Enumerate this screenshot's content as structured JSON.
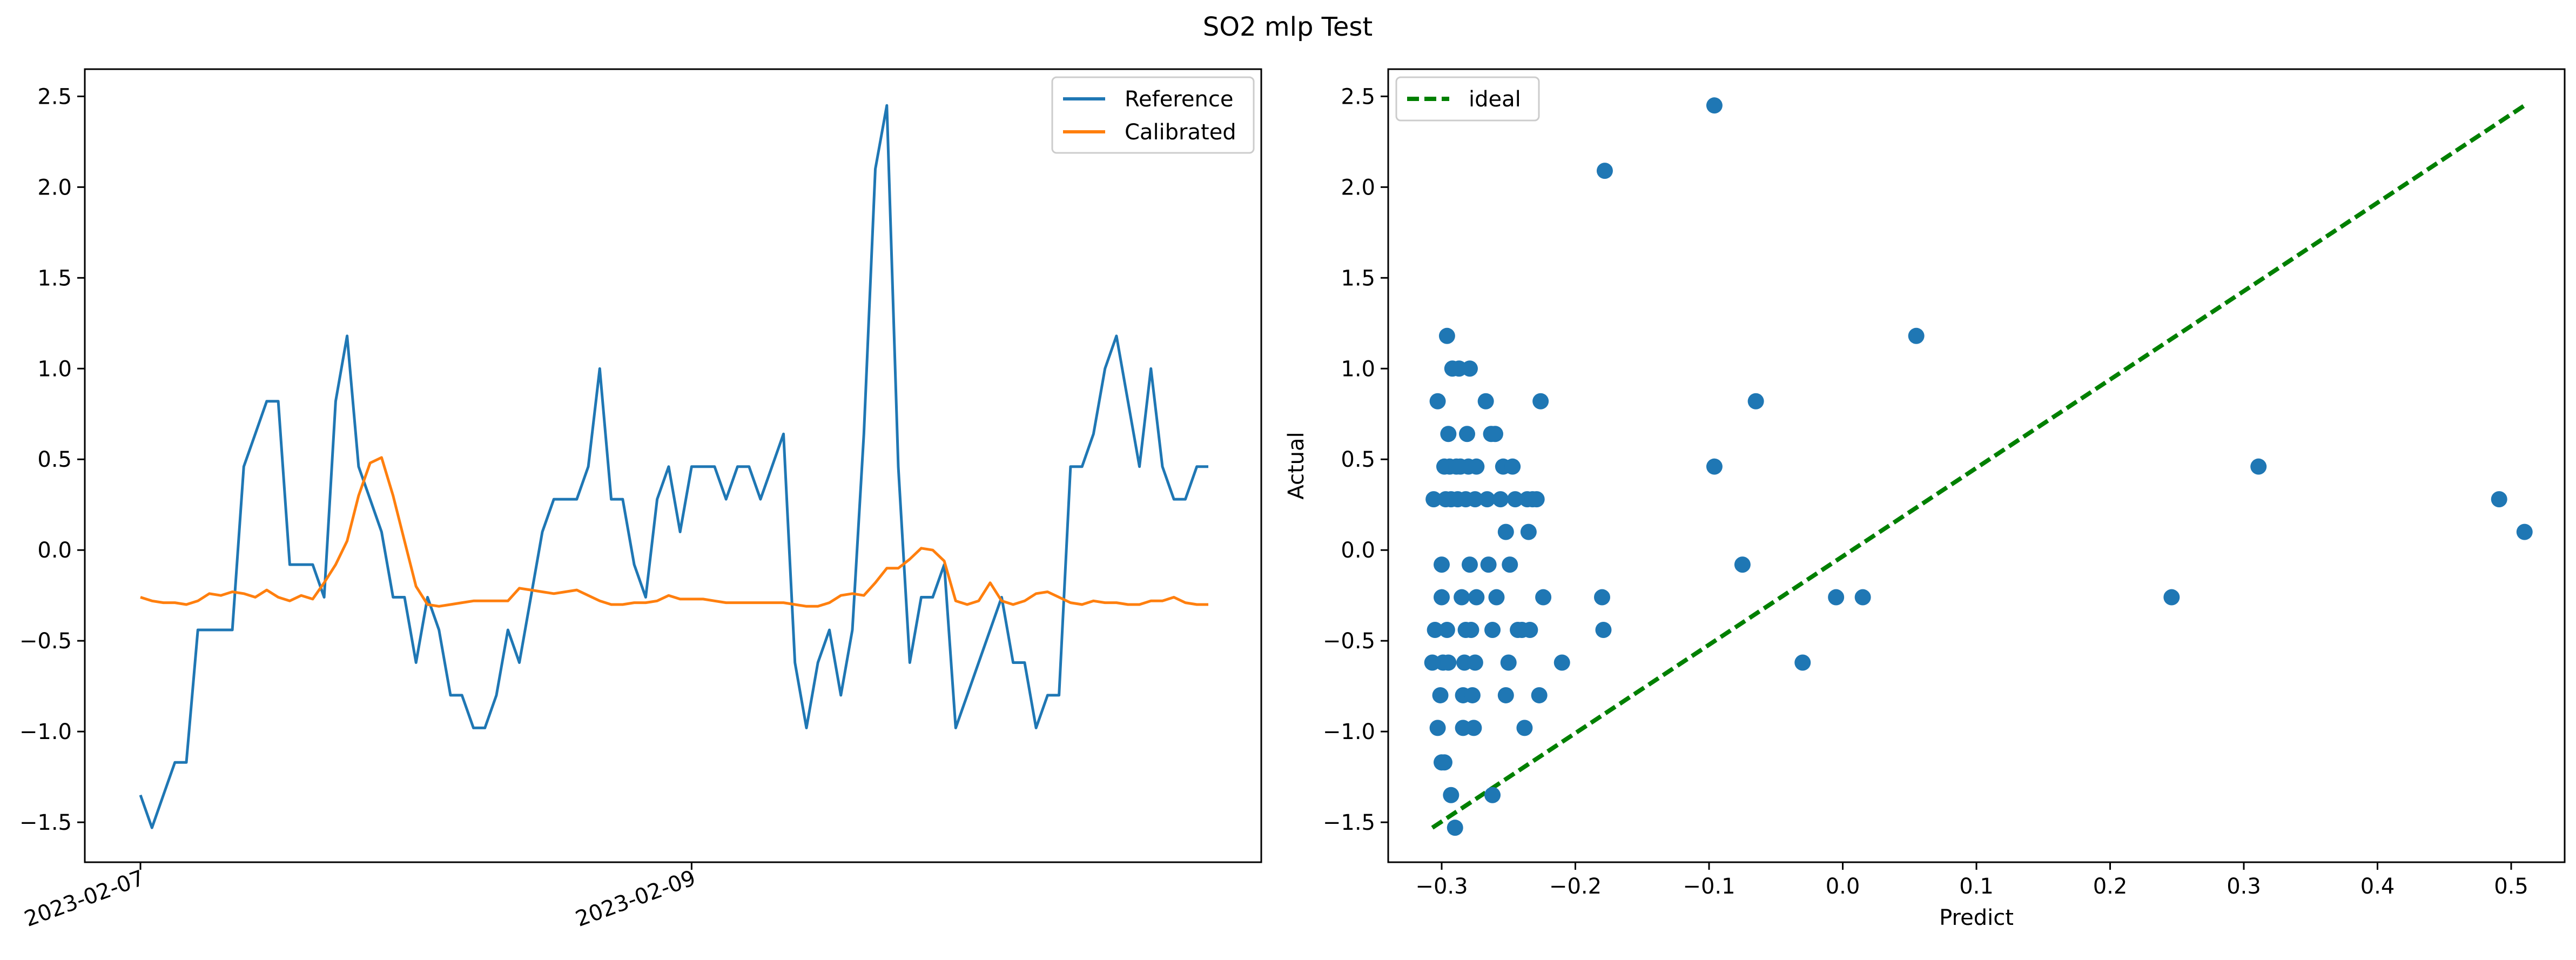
{
  "figure": {
    "suptitle": "SO2 mlp Test"
  },
  "chart_data": [
    {
      "type": "line",
      "title": "",
      "xlabel": "",
      "ylabel": "",
      "ylim": [
        -1.72,
        2.65
      ],
      "yticks": [
        -1.5,
        -1.0,
        -0.5,
        0.0,
        0.5,
        1.0,
        1.5,
        2.0,
        2.5
      ],
      "ytick_labels": [
        "−1.5",
        "−1.0",
        "−0.5",
        "0.0",
        "0.5",
        "1.0",
        "1.5",
        "2.0",
        "2.5"
      ],
      "xtick_labels": [
        "2023-02-07",
        "2023-02-09"
      ],
      "xtick_index": [
        0,
        48
      ],
      "grid": false,
      "legend_position": "top-right",
      "series": [
        {
          "name": "Reference",
          "color": "#1f77b4",
          "values": [
            -1.35,
            -1.53,
            -1.35,
            -1.17,
            -1.17,
            -0.44,
            -0.44,
            -0.44,
            -0.44,
            0.46,
            0.64,
            0.82,
            0.82,
            -0.08,
            -0.08,
            -0.08,
            -0.26,
            0.82,
            1.18,
            0.46,
            0.28,
            0.1,
            -0.26,
            -0.26,
            -0.62,
            -0.26,
            -0.44,
            -0.8,
            -0.8,
            -0.98,
            -0.98,
            -0.8,
            -0.44,
            -0.62,
            -0.26,
            0.1,
            0.28,
            0.28,
            0.28,
            0.46,
            1.0,
            0.28,
            0.28,
            -0.08,
            -0.26,
            0.28,
            0.46,
            0.1,
            0.46,
            0.46,
            0.46,
            0.28,
            0.46,
            0.46,
            0.28,
            0.46,
            0.64,
            -0.62,
            -0.98,
            -0.62,
            -0.44,
            -0.8,
            -0.44,
            0.64,
            2.1,
            2.45,
            0.46,
            -0.62,
            -0.26,
            -0.26,
            -0.08,
            -0.98,
            -0.8,
            -0.62,
            -0.44,
            -0.26,
            -0.62,
            -0.62,
            -0.98,
            -0.8,
            -0.8,
            0.46,
            0.46,
            0.64,
            1.0,
            1.18,
            0.82,
            0.46,
            1.0,
            0.46,
            0.28,
            0.28,
            0.46,
            0.46
          ]
        },
        {
          "name": "Calibrated",
          "color": "#ff7f0e",
          "values": [
            -0.26,
            -0.28,
            -0.29,
            -0.29,
            -0.3,
            -0.28,
            -0.24,
            -0.25,
            -0.23,
            -0.24,
            -0.26,
            -0.22,
            -0.26,
            -0.28,
            -0.25,
            -0.27,
            -0.18,
            -0.08,
            0.05,
            0.3,
            0.48,
            0.51,
            0.3,
            0.05,
            -0.2,
            -0.3,
            -0.31,
            -0.3,
            -0.29,
            -0.28,
            -0.28,
            -0.28,
            -0.28,
            -0.21,
            -0.22,
            -0.23,
            -0.24,
            -0.23,
            -0.22,
            -0.25,
            -0.28,
            -0.3,
            -0.3,
            -0.29,
            -0.29,
            -0.28,
            -0.25,
            -0.27,
            -0.27,
            -0.27,
            -0.28,
            -0.29,
            -0.29,
            -0.29,
            -0.29,
            -0.29,
            -0.29,
            -0.3,
            -0.31,
            -0.31,
            -0.29,
            -0.25,
            -0.24,
            -0.25,
            -0.18,
            -0.1,
            -0.1,
            -0.05,
            0.01,
            0.0,
            -0.06,
            -0.28,
            -0.3,
            -0.28,
            -0.18,
            -0.28,
            -0.3,
            -0.28,
            -0.24,
            -0.23,
            -0.26,
            -0.29,
            -0.3,
            -0.28,
            -0.29,
            -0.29,
            -0.3,
            -0.3,
            -0.28,
            -0.28,
            -0.26,
            -0.29,
            -0.3,
            -0.3
          ]
        }
      ]
    },
    {
      "type": "scatter",
      "title": "",
      "xlabel": "Predict",
      "ylabel": "Actual",
      "xlim": [
        -0.34,
        0.54
      ],
      "ylim": [
        -1.72,
        2.65
      ],
      "xticks": [
        -0.3,
        -0.2,
        -0.1,
        0.0,
        0.1,
        0.2,
        0.3,
        0.4,
        0.5
      ],
      "xtick_labels": [
        "−0.3",
        "−0.2",
        "−0.1",
        "0.0",
        "0.1",
        "0.2",
        "0.3",
        "0.4",
        "0.5"
      ],
      "yticks": [
        -1.5,
        -1.0,
        -0.5,
        0.0,
        0.5,
        1.0,
        1.5,
        2.0,
        2.5
      ],
      "ytick_labels": [
        "−1.5",
        "−1.0",
        "−0.5",
        "0.0",
        "0.5",
        "1.0",
        "1.5",
        "2.0",
        "2.5"
      ],
      "grid": false,
      "legend_position": "top-left",
      "points_color": "#1f77b4",
      "points": [
        [
          -0.306,
          0.28
        ],
        [
          -0.303,
          0.82
        ],
        [
          -0.305,
          -0.44
        ],
        [
          -0.307,
          -0.62
        ],
        [
          -0.303,
          -0.98
        ],
        [
          -0.301,
          -0.8
        ],
        [
          -0.299,
          -0.62
        ],
        [
          -0.3,
          -0.26
        ],
        [
          -0.3,
          -0.08
        ],
        [
          -0.298,
          0.46
        ],
        [
          -0.297,
          0.28
        ],
        [
          -0.296,
          1.18
        ],
        [
          -0.295,
          0.64
        ],
        [
          -0.296,
          -0.44
        ],
        [
          -0.295,
          -0.62
        ],
        [
          -0.294,
          0.46
        ],
        [
          -0.293,
          0.28
        ],
        [
          -0.292,
          1.0
        ],
        [
          -0.293,
          -1.35
        ],
        [
          -0.29,
          -1.53
        ],
        [
          -0.3,
          -1.17
        ],
        [
          -0.298,
          -1.17
        ],
        [
          -0.289,
          0.46
        ],
        [
          -0.288,
          0.28
        ],
        [
          -0.287,
          1.0
        ],
        [
          -0.286,
          0.46
        ],
        [
          -0.285,
          -0.26
        ],
        [
          -0.284,
          -0.8
        ],
        [
          -0.284,
          -0.98
        ],
        [
          -0.283,
          -0.62
        ],
        [
          -0.282,
          -0.44
        ],
        [
          -0.282,
          0.28
        ],
        [
          -0.281,
          0.64
        ],
        [
          -0.28,
          0.46
        ],
        [
          -0.279,
          1.0
        ],
        [
          -0.279,
          -0.08
        ],
        [
          -0.278,
          -0.44
        ],
        [
          -0.277,
          -0.8
        ],
        [
          -0.276,
          -0.98
        ],
        [
          -0.275,
          -0.62
        ],
        [
          -0.275,
          0.28
        ],
        [
          -0.274,
          0.46
        ],
        [
          -0.274,
          -0.26
        ],
        [
          -0.267,
          0.82
        ],
        [
          -0.266,
          0.28
        ],
        [
          -0.265,
          -0.08
        ],
        [
          -0.263,
          0.64
        ],
        [
          -0.262,
          -0.44
        ],
        [
          -0.262,
          -1.35
        ],
        [
          -0.26,
          0.64
        ],
        [
          -0.259,
          -0.26
        ],
        [
          -0.256,
          0.28
        ],
        [
          -0.254,
          0.46
        ],
        [
          -0.252,
          0.1
        ],
        [
          -0.252,
          -0.8
        ],
        [
          -0.25,
          -0.62
        ],
        [
          -0.249,
          -0.08
        ],
        [
          -0.247,
          0.46
        ],
        [
          -0.245,
          0.28
        ],
        [
          -0.243,
          -0.44
        ],
        [
          -0.24,
          -0.44
        ],
        [
          -0.238,
          -0.98
        ],
        [
          -0.236,
          0.28
        ],
        [
          -0.235,
          0.1
        ],
        [
          -0.234,
          -0.44
        ],
        [
          -0.232,
          0.28
        ],
        [
          -0.229,
          0.28
        ],
        [
          -0.227,
          -0.8
        ],
        [
          -0.226,
          0.82
        ],
        [
          -0.224,
          -0.26
        ],
        [
          -0.21,
          -0.62
        ],
        [
          -0.18,
          -0.26
        ],
        [
          -0.179,
          -0.44
        ],
        [
          -0.178,
          2.09
        ],
        [
          -0.096,
          2.45
        ],
        [
          -0.096,
          0.46
        ],
        [
          -0.075,
          -0.08
        ],
        [
          -0.065,
          0.82
        ],
        [
          -0.03,
          -0.62
        ],
        [
          -0.005,
          -0.26
        ],
        [
          0.015,
          -0.26
        ],
        [
          0.055,
          1.18
        ],
        [
          0.246,
          -0.26
        ],
        [
          0.311,
          0.46
        ],
        [
          0.491,
          0.28
        ],
        [
          0.51,
          0.1
        ]
      ],
      "ideal_line": {
        "name": "ideal",
        "color": "#008000",
        "from": [
          -0.307,
          -1.53
        ],
        "to": [
          0.51,
          2.45
        ]
      }
    }
  ]
}
